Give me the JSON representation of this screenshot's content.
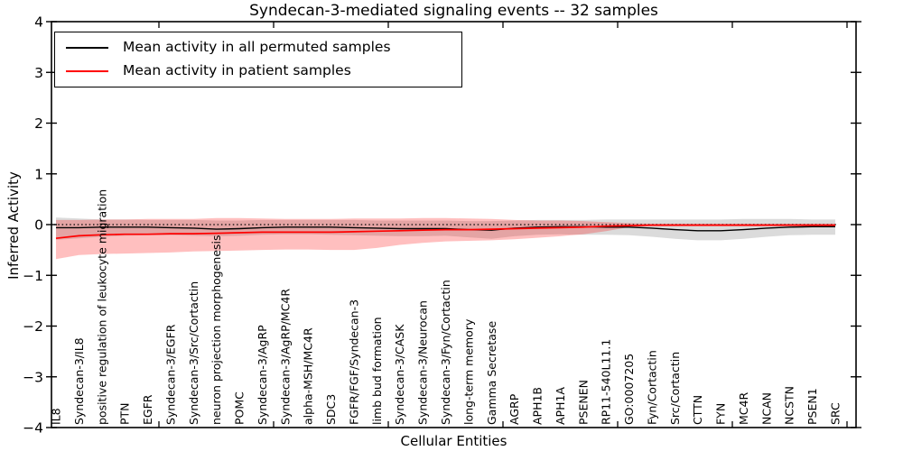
{
  "figure": {
    "title": "Syndecan-3-mediated signaling events -- 32 samples",
    "xlabel": "Cellular Entities",
    "ylabel": "Inferred Activity"
  },
  "legend": {
    "entries": [
      {
        "label": "Mean activity in all permuted samples",
        "color": "#000000"
      },
      {
        "label": "Mean activity in patient samples",
        "color": "#ff0000"
      }
    ]
  },
  "chart_data": {
    "type": "line",
    "title": "Syndecan-3-mediated signaling events -- 32 samples",
    "xlabel": "Cellular Entities",
    "ylabel": "Inferred Activity",
    "ylim": [
      -4,
      4
    ],
    "y_ticks": [
      4,
      3,
      2,
      1,
      0,
      -1,
      -2,
      -3,
      -4
    ],
    "grid": false,
    "legend_position": "upper left",
    "zero_line": {
      "y": 0,
      "style": "dotted",
      "color": "#000000"
    },
    "categories": [
      "IL8",
      "Syndecan-3/IL8",
      "positive regulation of leukocyte migration",
      "PTN",
      "EGFR",
      "Syndecan-3/EGFR",
      "Syndecan-3/Src/Cortactin",
      "neuron projection morphogenesis",
      "POMC",
      "Syndecan-3/AgRP",
      "Syndecan-3/AgRP/MC4R",
      "alpha-MSH/MC4R",
      "SDC3",
      "FGFR/FGF/Syndecan-3",
      "limb bud formation",
      "Syndecan-3/CASK",
      "Syndecan-3/Neurocan",
      "Syndecan-3/Fyn/Cortactin",
      "long-term memory",
      "Gamma Secretase",
      "AGRP",
      "APH1B",
      "APH1A",
      "PSENEN",
      "RP11-540L11.1",
      "GO:0007205",
      "Fyn/Cortactin",
      "Src/Cortactin",
      "CTTN",
      "FYN",
      "MC4R",
      "NCAN",
      "NCSTN",
      "PSEN1",
      "SRC"
    ],
    "series": [
      {
        "name": "Mean activity in all permuted samples",
        "color": "#000000",
        "band_color": "rgba(90,90,90,0.22)",
        "values": [
          -0.06,
          -0.06,
          -0.05,
          -0.05,
          -0.05,
          -0.06,
          -0.07,
          -0.09,
          -0.08,
          -0.06,
          -0.05,
          -0.05,
          -0.05,
          -0.06,
          -0.07,
          -0.08,
          -0.08,
          -0.08,
          -0.1,
          -0.11,
          -0.07,
          -0.05,
          -0.04,
          -0.04,
          -0.05,
          -0.05,
          -0.07,
          -0.1,
          -0.12,
          -0.12,
          -0.1,
          -0.07,
          -0.05,
          -0.04,
          -0.04
        ],
        "band_upper": [
          0.14,
          0.12,
          0.1,
          0.1,
          0.09,
          0.09,
          0.09,
          0.08,
          0.08,
          0.09,
          0.09,
          0.09,
          0.09,
          0.09,
          0.08,
          0.08,
          0.08,
          0.08,
          0.07,
          0.07,
          0.08,
          0.09,
          0.09,
          0.09,
          0.1,
          0.1,
          0.1,
          0.1,
          0.1,
          0.1,
          0.11,
          0.11,
          0.11,
          0.1,
          0.1
        ],
        "band_lower": [
          -0.3,
          -0.27,
          -0.24,
          -0.22,
          -0.21,
          -0.21,
          -0.22,
          -0.23,
          -0.22,
          -0.2,
          -0.19,
          -0.19,
          -0.2,
          -0.21,
          -0.22,
          -0.23,
          -0.23,
          -0.22,
          -0.25,
          -0.28,
          -0.23,
          -0.2,
          -0.19,
          -0.2,
          -0.2,
          -0.21,
          -0.24,
          -0.28,
          -0.31,
          -0.31,
          -0.28,
          -0.24,
          -0.21,
          -0.2,
          -0.2
        ]
      },
      {
        "name": "Mean activity in patient samples",
        "color": "#ff0000",
        "band_color": "rgba(255,0,0,0.25)",
        "values": [
          -0.27,
          -0.22,
          -0.2,
          -0.19,
          -0.19,
          -0.18,
          -0.18,
          -0.17,
          -0.16,
          -0.15,
          -0.15,
          -0.15,
          -0.15,
          -0.14,
          -0.13,
          -0.12,
          -0.11,
          -0.1,
          -0.1,
          -0.09,
          -0.08,
          -0.07,
          -0.06,
          -0.05,
          -0.03,
          -0.02,
          -0.01,
          -0.01,
          -0.01,
          -0.01,
          -0.01,
          -0.01,
          -0.01,
          -0.01,
          -0.01
        ],
        "band_upper": [
          0.09,
          0.09,
          0.1,
          0.1,
          0.11,
          0.11,
          0.11,
          0.13,
          0.13,
          0.12,
          0.11,
          0.11,
          0.11,
          0.12,
          0.12,
          0.12,
          0.13,
          0.13,
          0.12,
          0.11,
          0.09,
          0.08,
          0.08,
          0.07,
          0.05,
          0.03,
          0.02,
          0.02,
          0.02,
          0.02,
          0.02,
          0.02,
          0.02,
          0.02,
          0.02
        ],
        "band_lower": [
          -0.68,
          -0.6,
          -0.58,
          -0.57,
          -0.56,
          -0.55,
          -0.53,
          -0.52,
          -0.51,
          -0.5,
          -0.49,
          -0.49,
          -0.5,
          -0.5,
          -0.46,
          -0.4,
          -0.36,
          -0.33,
          -0.32,
          -0.31,
          -0.29,
          -0.26,
          -0.23,
          -0.19,
          -0.13,
          -0.05,
          -0.03,
          -0.03,
          -0.03,
          -0.03,
          -0.03,
          -0.03,
          -0.03,
          -0.03,
          -0.03
        ]
      }
    ]
  }
}
